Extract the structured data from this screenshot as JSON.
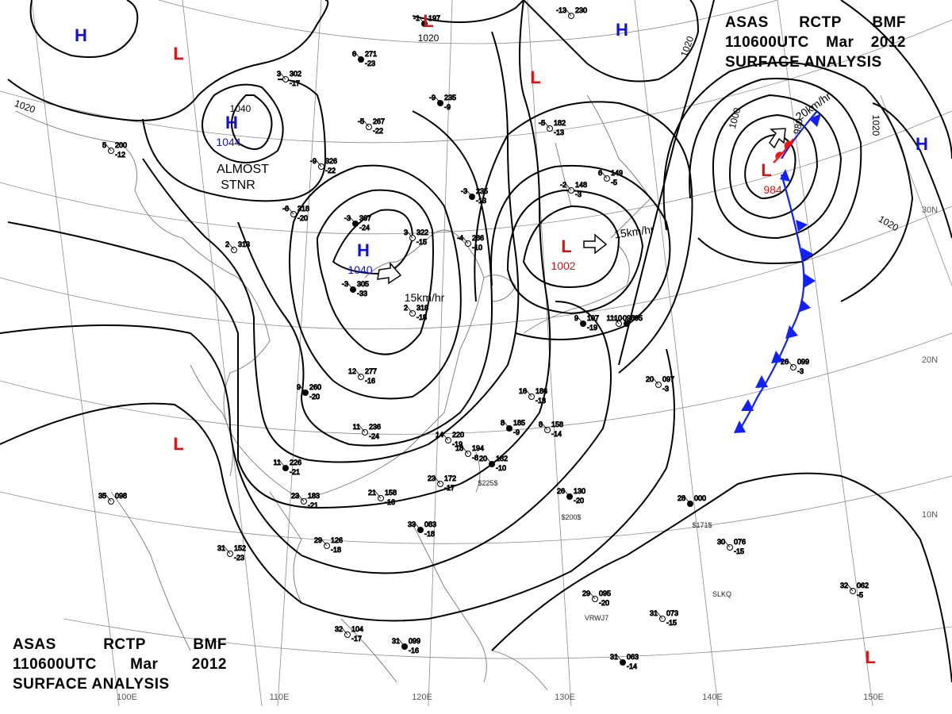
{
  "title": {
    "line1": [
      "ASAS",
      "RCTP",
      "BMF"
    ],
    "line2": [
      "110600UTC",
      "Mar",
      "2012"
    ],
    "line3": "SURFACE ANALYSIS"
  },
  "colors": {
    "high": "#1010e0",
    "low": "#e01010",
    "cold_front": "#1020ff",
    "warm_front": "#ff1010",
    "isobar": "#000000",
    "grid": "#888888",
    "coast": "#777777"
  },
  "pressure_centers": [
    {
      "type": "H",
      "value": ""
    },
    {
      "type": "L",
      "value": ""
    },
    {
      "type": "H",
      "value": "1044"
    },
    {
      "type": "L",
      "value": ""
    },
    {
      "type": "H",
      "value": ""
    },
    {
      "type": "L",
      "value": ""
    },
    {
      "type": "H",
      "value": "1040"
    },
    {
      "type": "L",
      "value": "1002"
    },
    {
      "type": "L",
      "value": "984"
    },
    {
      "type": "H",
      "value": ""
    },
    {
      "type": "L",
      "value": ""
    },
    {
      "type": "L",
      "value": ""
    }
  ],
  "isobar_labels": [
    "1020",
    "1020",
    "1040",
    "1020",
    "1000",
    "980",
    "1020",
    "1020"
  ],
  "motion_labels": [
    "15km/hr",
    "15km/hr",
    "20km/hr"
  ],
  "annotations": [
    "ALMOST",
    "STNR"
  ],
  "longitude_labels": [
    "100E",
    "110E",
    "120E",
    "130E",
    "140E",
    "150E"
  ],
  "latitude_labels": [
    "30N",
    "20N",
    "10N"
  ],
  "station_samples": [
    {
      "temp": "6",
      "pres": "271",
      "dew": "-23"
    },
    {
      "temp": "3",
      "pres": "302",
      "dew": "-17"
    },
    {
      "temp": "-5",
      "pres": "267",
      "dew": "-22"
    },
    {
      "temp": "-9",
      "pres": "235",
      "dew": "-9"
    },
    {
      "temp": "-9",
      "pres": "326",
      "dew": "-22"
    },
    {
      "temp": "-6",
      "pres": "318",
      "dew": "-20"
    },
    {
      "temp": "-3",
      "pres": "367",
      "dew": "-24"
    },
    {
      "temp": "3",
      "pres": "322",
      "dew": "-15"
    },
    {
      "temp": "-4",
      "pres": "286",
      "dew": "-10"
    },
    {
      "temp": "-3",
      "pres": "235",
      "dew": "-13"
    },
    {
      "temp": "2",
      "pres": "313",
      "dew": ""
    },
    {
      "temp": "5",
      "pres": "200",
      "dew": "-12"
    },
    {
      "temp": "-3",
      "pres": "305",
      "dew": "-33"
    },
    {
      "temp": "2",
      "pres": "318",
      "dew": "-18"
    },
    {
      "temp": "12",
      "pres": "277",
      "dew": "-16"
    },
    {
      "temp": "9",
      "pres": "260",
      "dew": "-20"
    },
    {
      "temp": "11",
      "pres": "236",
      "dew": "-24"
    },
    {
      "temp": "14",
      "pres": "220",
      "dew": "-19"
    },
    {
      "temp": "11",
      "pres": "226",
      "dew": "-21"
    },
    {
      "temp": "21",
      "pres": "158",
      "dew": "-16"
    },
    {
      "temp": "18",
      "pres": "194",
      "dew": "-8"
    },
    {
      "temp": "20",
      "pres": "182",
      "dew": "-10"
    },
    {
      "temp": "23",
      "pres": "172",
      "dew": "-17"
    },
    {
      "temp": "23",
      "pres": "183",
      "dew": "-21"
    },
    {
      "temp": "26",
      "pres": "130",
      "dew": "-20"
    },
    {
      "temp": "29",
      "pres": "126",
      "dew": "-18"
    },
    {
      "temp": "31",
      "pres": "152",
      "dew": "-23"
    },
    {
      "temp": "33",
      "pres": "083",
      "dew": "-18"
    },
    {
      "temp": "35",
      "pres": "098",
      "dew": ""
    },
    {
      "temp": "32",
      "pres": "104",
      "dew": "-17"
    },
    {
      "temp": "31",
      "pres": "099",
      "dew": "-16"
    },
    {
      "temp": "29",
      "pres": "095",
      "dew": "-20"
    },
    {
      "temp": "31",
      "pres": "073",
      "dew": "-15"
    },
    {
      "temp": "28",
      "pres": "000",
      "dew": ""
    },
    {
      "temp": "30",
      "pres": "076",
      "dew": "-15"
    },
    {
      "temp": "32",
      "pres": "062",
      "dew": "-5"
    },
    {
      "temp": "31",
      "pres": "063",
      "dew": "-14"
    },
    {
      "temp": "20",
      "pres": "097",
      "dew": "-3"
    },
    {
      "temp": "26",
      "pres": "099",
      "dew": "-3"
    },
    {
      "temp": "10",
      "pres": "095",
      "dew": ""
    },
    {
      "temp": "-5",
      "pres": "182",
      "dew": "-13"
    },
    {
      "temp": "6",
      "pres": "149",
      "dew": "-5"
    },
    {
      "temp": "-1",
      "pres": "197",
      "dew": ""
    },
    {
      "temp": "-13",
      "pres": "230",
      "dew": ""
    },
    {
      "temp": "-2",
      "pres": "148",
      "dew": "-3"
    },
    {
      "temp": "8",
      "pres": "185",
      "dew": "-9"
    },
    {
      "temp": "8",
      "pres": "158",
      "dew": "-14"
    },
    {
      "temp": "16",
      "pres": "186",
      "dew": "-13"
    },
    {
      "temp": "9",
      "pres": "107",
      "dew": "-19"
    },
    {
      "temp": "11",
      "pres": "095",
      "dew": ""
    }
  ],
  "ship_ids": [
    "$200$",
    "$171$",
    "SLKQ",
    "VRWJ7",
    "$225$"
  ]
}
